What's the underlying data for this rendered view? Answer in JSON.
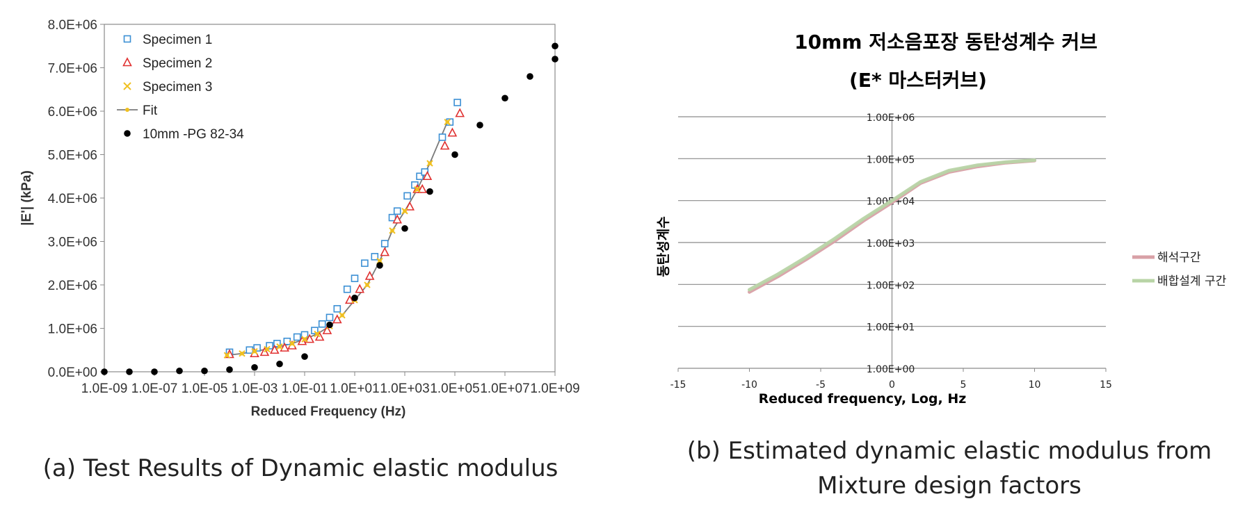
{
  "chart_data": [
    {
      "type": "scatter",
      "title": "",
      "xlabel": "Reduced Frequency (Hz)",
      "ylabel": "|E'| (kPa)",
      "x_scale": "log",
      "xlim": [
        1e-09,
        1000000000.0
      ],
      "ylim": [
        0,
        8000000
      ],
      "x_tick_labels": [
        "1.0E-09",
        "1.0E-07",
        "1.0E-05",
        "1.0E-03",
        "1.0E-01",
        "1.0E+01",
        "1.0E+03",
        "1.0E+05",
        "1.0E+07",
        "1.0E+09"
      ],
      "y_tick_labels": [
        "0.0E+00",
        "1.0E+06",
        "2.0E+06",
        "3.0E+06",
        "4.0E+06",
        "5.0E+06",
        "6.0E+06",
        "7.0E+06",
        "8.0E+06"
      ],
      "grid": false,
      "legend_position": "top-left",
      "series": [
        {
          "name": "Specimen 1",
          "marker": "square",
          "color": "#3b8fd4",
          "x": [
            -4,
            -3.2,
            -2.9,
            -2.4,
            -2.1,
            -1.7,
            -1.3,
            -1,
            -0.6,
            -0.3,
            0,
            0.3,
            0.7,
            1,
            1.4,
            1.8,
            2.2,
            2.5,
            2.7,
            3.1,
            3.4,
            3.6,
            3.8,
            4.5,
            4.8,
            5.1
          ],
          "y": [
            450000,
            500000,
            550000,
            600000,
            650000,
            700000,
            800000,
            850000,
            950000,
            1100000,
            1250000,
            1450000,
            1900000,
            2150000,
            2500000,
            2650000,
            2950000,
            3550000,
            3700000,
            4050000,
            4300000,
            4500000,
            4600000,
            5400000,
            5750000,
            6200000
          ]
        },
        {
          "name": "Specimen 2",
          "marker": "triangle",
          "color": "#e03030",
          "x": [
            -4,
            -3,
            -2.6,
            -2.2,
            -1.8,
            -1.5,
            -1.1,
            -0.8,
            -0.4,
            -0.1,
            0.3,
            0.8,
            1.2,
            1.6,
            2.2,
            2.7,
            3.2,
            3.5,
            3.7,
            3.9,
            4.6,
            4.9,
            5.2
          ],
          "y": [
            400000,
            420000,
            450000,
            500000,
            550000,
            600000,
            700000,
            750000,
            800000,
            950000,
            1200000,
            1650000,
            1900000,
            2200000,
            2750000,
            3500000,
            3800000,
            4200000,
            4200000,
            4500000,
            5200000,
            5500000,
            5950000
          ]
        },
        {
          "name": "Specimen 3",
          "marker": "x",
          "color": "#f0c020",
          "x": [
            -4.1,
            -3.5,
            -3.0,
            -2.5,
            -2.0,
            -1.5,
            -1.0,
            -0.5,
            0,
            0.5,
            1.0,
            1.5,
            2.0,
            2.5,
            3.0,
            3.5,
            4.0,
            4.7
          ],
          "y": [
            380000,
            420000,
            470000,
            520000,
            580000,
            650000,
            750000,
            870000,
            1050000,
            1300000,
            1650000,
            2000000,
            2550000,
            3250000,
            3700000,
            4200000,
            4800000,
            5750000
          ]
        },
        {
          "name": "Fit",
          "marker": "line",
          "color": "#7a7a7a",
          "x": [
            -4.1,
            -3.5,
            -3.0,
            -2.5,
            -2.0,
            -1.5,
            -1.0,
            -0.5,
            0,
            0.5,
            1.0,
            1.5,
            2.0,
            2.5,
            3.0,
            3.5,
            4.0,
            4.7
          ],
          "y": [
            380000,
            420000,
            470000,
            520000,
            580000,
            650000,
            750000,
            870000,
            1050000,
            1300000,
            1650000,
            2000000,
            2550000,
            3250000,
            3700000,
            4200000,
            4800000,
            5750000
          ]
        },
        {
          "name": "10mm -PG 82-34",
          "marker": "dot",
          "color": "#000000",
          "x": [
            -9,
            -8,
            -7,
            -6,
            -5,
            -4,
            -3,
            -2,
            -1,
            0,
            1,
            2,
            3,
            4,
            5,
            6,
            7,
            8,
            9,
            9
          ],
          "y": [
            0,
            0,
            0,
            20000,
            20000,
            50000,
            100000,
            180000,
            350000,
            1080000,
            1700000,
            2450000,
            3300000,
            4150000,
            5000000,
            5680000,
            6300000,
            6800000,
            7200000,
            7500000
          ]
        }
      ]
    },
    {
      "type": "line",
      "title": "10mm 저소음포장 동탄성계수 커브",
      "subtitle": "(E*  마스터커브)",
      "xlabel": "Reduced frequency, Log, Hz",
      "ylabel": "동탄성계수",
      "xlim": [
        -15,
        15
      ],
      "y_scale": "log",
      "ylim": [
        1,
        1000000
      ],
      "x_tick_labels": [
        "-15",
        "-10",
        "-5",
        "0",
        "5",
        "10",
        "15"
      ],
      "y_tick_labels": [
        "1.00E+00",
        "1.00E+01",
        "1.00E+02",
        "1.00E+03",
        "1.00E+04",
        "1.00E+05",
        "1.00E+06"
      ],
      "grid": true,
      "legend_position": "right",
      "series": [
        {
          "name": "해석구간",
          "color": "#d8a0a6",
          "x": [
            -10,
            -8,
            -6,
            -4,
            -2,
            0,
            2,
            4,
            6,
            8,
            10
          ],
          "y": [
            66,
            155,
            400,
            1100,
            3300,
            9000,
            26000,
            48000,
            65000,
            80000,
            90000
          ]
        },
        {
          "name": "배합설계 구간",
          "color": "#b8d4a6",
          "x": [
            -10,
            -8,
            -6,
            -4,
            -2,
            0,
            2,
            4,
            6,
            8,
            10
          ],
          "y": [
            75,
            175,
            450,
            1250,
            3700,
            10000,
            28000,
            52000,
            70000,
            83000,
            92000
          ]
        }
      ]
    }
  ],
  "captions": {
    "a": "(a)  Test Results of Dynamic elastic modulus",
    "b_line1": "(b) Estimated dynamic elastic modulus from",
    "b_line2": "Mixture design factors"
  }
}
